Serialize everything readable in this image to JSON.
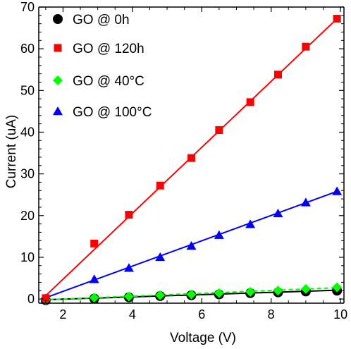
{
  "chart_data": {
    "type": "scatter",
    "xlabel": "Voltage (V)",
    "ylabel": "Current (uA)",
    "xlim": [
      1.3,
      10.1
    ],
    "ylim": [
      -1,
      70
    ],
    "x_ticks": [
      2,
      4,
      6,
      8,
      10
    ],
    "y_ticks": [
      0,
      10,
      20,
      30,
      40,
      50,
      60,
      70
    ],
    "grid": false,
    "legend_position": "top-left",
    "series": [
      {
        "name": "GO @ 0h",
        "marker": "circle",
        "color": "#000000",
        "line_style": "solid",
        "x": [
          1.5,
          2.9,
          3.9,
          4.8,
          5.7,
          6.5,
          7.4,
          8.2,
          9.0,
          9.9
        ],
        "y": [
          -0.3,
          0.1,
          0.4,
          0.7,
          0.9,
          1.1,
          1.4,
          1.6,
          1.8,
          2.0
        ],
        "fit": [
          [
            1.4,
            -0.2
          ],
          [
            9.9,
            2.1
          ]
        ]
      },
      {
        "name": "GO @ 120h",
        "marker": "square",
        "color": "#ff0000",
        "line_style": "solid",
        "x": [
          1.5,
          2.9,
          3.9,
          4.8,
          5.7,
          6.5,
          7.4,
          8.2,
          9.0,
          9.9
        ],
        "y": [
          0.2,
          13.3,
          20.2,
          27.2,
          33.8,
          40.5,
          47.2,
          53.8,
          60.5,
          67.2
        ],
        "fit": [
          [
            1.4,
            0.0
          ],
          [
            9.9,
            67.2
          ]
        ]
      },
      {
        "name": "GO @ 40°C",
        "marker": "diamond",
        "color": "#00ff00",
        "line_style": "dashed",
        "x": [
          1.5,
          2.9,
          3.9,
          4.8,
          5.7,
          6.5,
          7.4,
          8.2,
          9.0,
          9.9
        ],
        "y": [
          -0.2,
          0.3,
          0.6,
          0.9,
          1.1,
          1.4,
          1.7,
          2.0,
          2.4,
          2.8
        ],
        "fit": [
          [
            1.4,
            -0.2
          ],
          [
            9.9,
            2.7
          ]
        ]
      },
      {
        "name": "GO @ 100°C",
        "marker": "triangle",
        "color": "#0000ff",
        "line_style": "solid",
        "x": [
          1.5,
          2.9,
          3.9,
          4.8,
          5.7,
          6.5,
          7.4,
          8.2,
          9.0,
          9.9
        ],
        "y": [
          0.1,
          4.7,
          7.4,
          10.0,
          12.7,
          15.3,
          17.9,
          20.5,
          23.1,
          25.8
        ],
        "fit": [
          [
            1.4,
            0.0
          ],
          [
            9.9,
            25.8
          ]
        ]
      }
    ]
  }
}
